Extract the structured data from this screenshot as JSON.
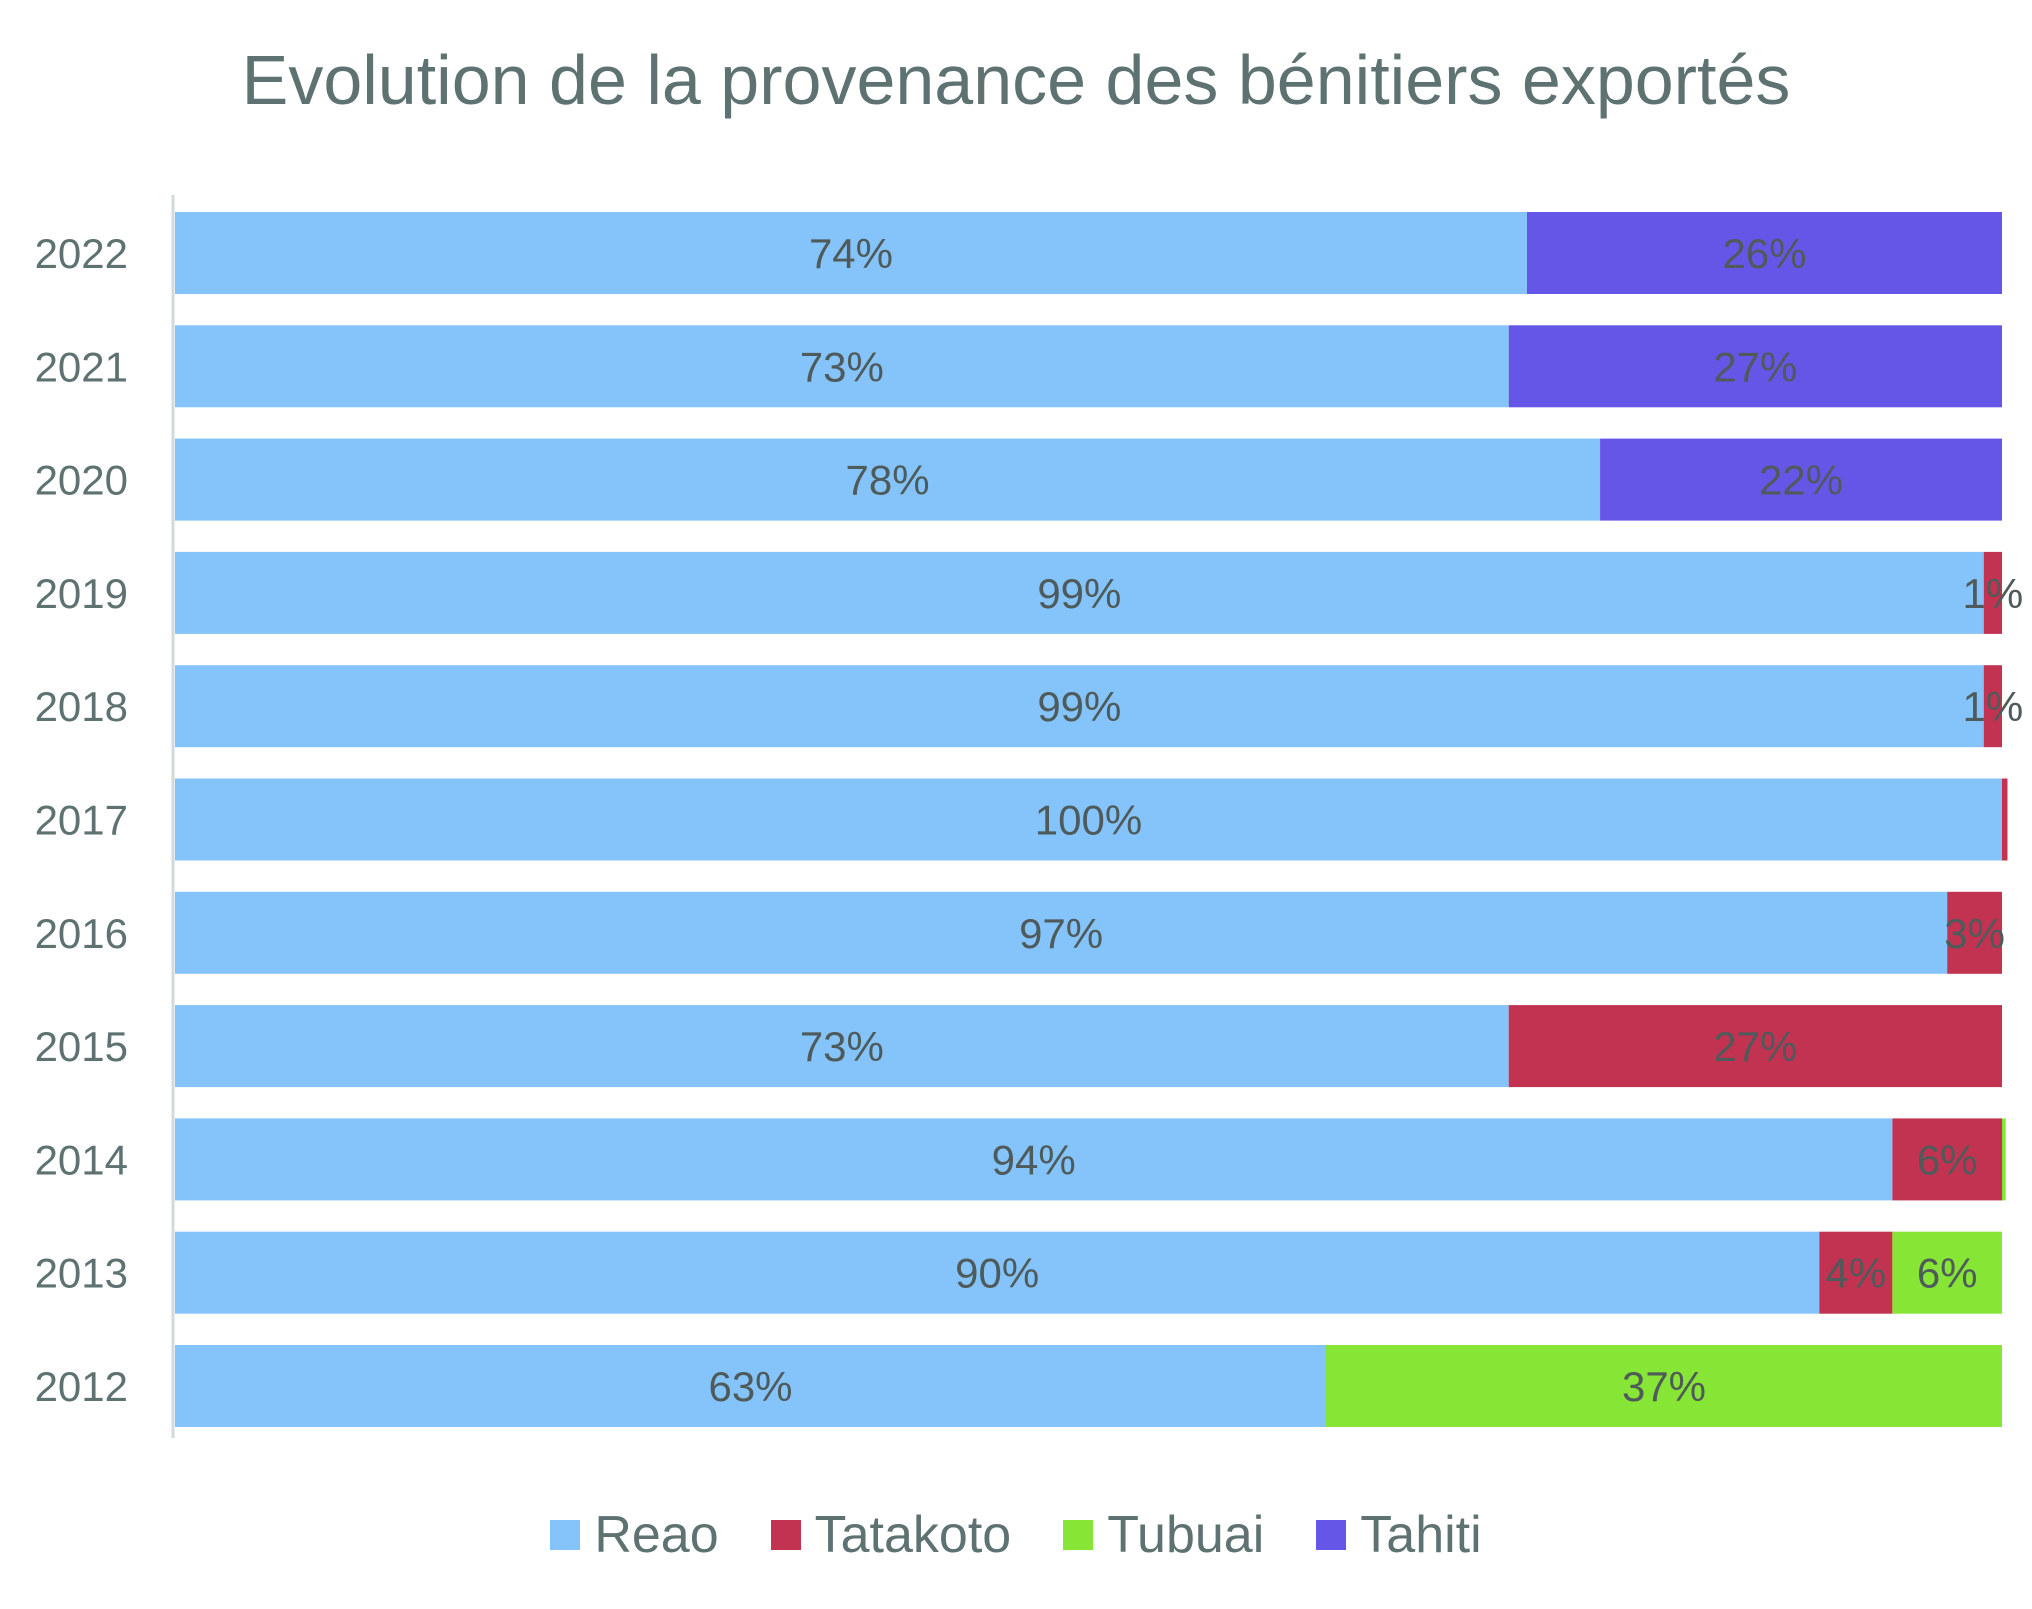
{
  "chart_data": {
    "type": "bar",
    "orientation": "horizontal",
    "stacked": true,
    "title": "Evolution de la provenance des bénitiers exportés",
    "categories": [
      "2022",
      "2021",
      "2020",
      "2019",
      "2018",
      "2017",
      "2016",
      "2015",
      "2014",
      "2013",
      "2012"
    ],
    "series": [
      {
        "name": "Reao",
        "color": "#85c4fa",
        "values": [
          74,
          73,
          78,
          99,
          99,
          100,
          97,
          73,
          94,
          90,
          63
        ],
        "labels": [
          "74%",
          "73%",
          "78%",
          "99%",
          "99%",
          "100%",
          "97%",
          "73%",
          "94%",
          "90%",
          "63%"
        ]
      },
      {
        "name": "Tatakoto",
        "color": "#c13351",
        "values": [
          0,
          0,
          0,
          1,
          1,
          0.3,
          3,
          27,
          6,
          4,
          0
        ],
        "labels": [
          "",
          "",
          "",
          "1%",
          "1%",
          "",
          "3%",
          "27%",
          "6%",
          "4%",
          ""
        ]
      },
      {
        "name": "Tubuai",
        "color": "#86e535",
        "values": [
          0,
          0,
          0,
          0,
          0,
          0,
          0,
          0,
          0.2,
          6,
          37
        ],
        "labels": [
          "",
          "",
          "",
          "",
          "",
          "",
          "",
          "",
          "",
          "6%",
          "37%"
        ]
      },
      {
        "name": "Tahiti",
        "color": "#6656e8",
        "values": [
          26,
          27,
          22,
          0,
          0,
          0,
          0,
          0,
          0,
          0,
          0
        ],
        "labels": [
          "26%",
          "27%",
          "22%",
          "",
          "",
          "",
          "",
          "",
          "",
          "",
          ""
        ]
      }
    ],
    "xlim": [
      0,
      100
    ],
    "grid": false,
    "legend_position": "bottom"
  },
  "colors": {
    "text": "#5e7272",
    "label": "#4f5a5a",
    "axis": "#d3dada"
  }
}
